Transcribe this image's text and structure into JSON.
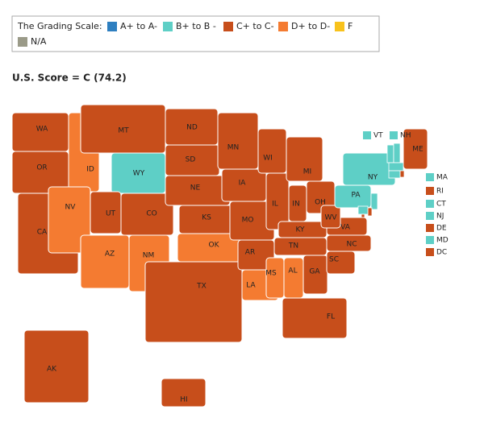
{
  "legend": {
    "title": "The Grading Scale:",
    "items": [
      {
        "label": "A+ to A-",
        "color": "#2e7fc0"
      },
      {
        "label": "B+ to B -",
        "color": "#5ecfc6"
      },
      {
        "label": "C+ to C-",
        "color": "#c74e1b"
      },
      {
        "label": "D+ to D-",
        "color": "#f47b31"
      },
      {
        "label": "F",
        "color": "#f8c21c"
      },
      {
        "label": "N/A",
        "color": "#9a9a88"
      }
    ]
  },
  "score_title": "U.S. Score = C (74.2)",
  "states": [
    {
      "label": "WA",
      "color": "#c74e1b"
    },
    {
      "label": "OR",
      "color": "#c74e1b"
    },
    {
      "label": "CA",
      "color": "#c74e1b"
    },
    {
      "label": "ID",
      "color": "#f47b31"
    },
    {
      "label": "NV",
      "color": "#f47b31"
    },
    {
      "label": "MT",
      "color": "#c74e1b"
    },
    {
      "label": "WY",
      "color": "#5ecfc6"
    },
    {
      "label": "UT",
      "color": "#c74e1b"
    },
    {
      "label": "CO",
      "color": "#c74e1b"
    },
    {
      "label": "AZ",
      "color": "#f47b31"
    },
    {
      "label": "NM",
      "color": "#f47b31"
    },
    {
      "label": "ND",
      "color": "#c74e1b"
    },
    {
      "label": "SD",
      "color": "#c74e1b"
    },
    {
      "label": "NE",
      "color": "#c74e1b"
    },
    {
      "label": "KS",
      "color": "#c74e1b"
    },
    {
      "label": "OK",
      "color": "#f47b31"
    },
    {
      "label": "TX",
      "color": "#c74e1b"
    },
    {
      "label": "MN",
      "color": "#c74e1b"
    },
    {
      "label": "IA",
      "color": "#c74e1b"
    },
    {
      "label": "MO",
      "color": "#c74e1b"
    },
    {
      "label": "AR",
      "color": "#c74e1b"
    },
    {
      "label": "LA",
      "color": "#f47b31"
    },
    {
      "label": "WI",
      "color": "#c74e1b"
    },
    {
      "label": "IL",
      "color": "#c74e1b"
    },
    {
      "label": "MI",
      "color": "#c74e1b"
    },
    {
      "label": "IN",
      "color": "#c74e1b"
    },
    {
      "label": "OH",
      "color": "#c74e1b"
    },
    {
      "label": "KY",
      "color": "#c74e1b"
    },
    {
      "label": "TN",
      "color": "#c74e1b"
    },
    {
      "label": "MS",
      "color": "#f47b31"
    },
    {
      "label": "AL",
      "color": "#f47b31"
    },
    {
      "label": "GA",
      "color": "#c74e1b"
    },
    {
      "label": "FL",
      "color": "#c74e1b"
    },
    {
      "label": "SC",
      "color": "#c74e1b"
    },
    {
      "label": "NC",
      "color": "#c74e1b"
    },
    {
      "label": "VA",
      "color": "#c74e1b"
    },
    {
      "label": "WV",
      "color": "#c74e1b"
    },
    {
      "label": "PA",
      "color": "#5ecfc6"
    },
    {
      "label": "NY",
      "color": "#5ecfc6"
    },
    {
      "label": "ME",
      "color": "#c74e1b"
    },
    {
      "label": "AK",
      "color": "#c74e1b"
    },
    {
      "label": "HI",
      "color": "#c74e1b"
    }
  ],
  "small_states": [
    {
      "label": "VT",
      "color": "#5ecfc6"
    },
    {
      "label": "NH",
      "color": "#5ecfc6"
    },
    {
      "label": "MA",
      "color": "#5ecfc6"
    },
    {
      "label": "RI",
      "color": "#c74e1b"
    },
    {
      "label": "CT",
      "color": "#5ecfc6"
    },
    {
      "label": "NJ",
      "color": "#5ecfc6"
    },
    {
      "label": "DE",
      "color": "#c74e1b"
    },
    {
      "label": "MD",
      "color": "#5ecfc6"
    },
    {
      "label": "DC",
      "color": "#c74e1b"
    }
  ]
}
